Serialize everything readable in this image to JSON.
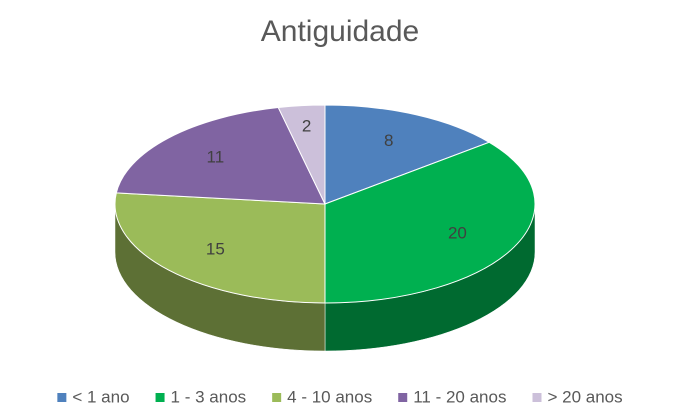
{
  "chart_data": {
    "type": "pie3d",
    "title": "Antiguidade",
    "categories": [
      "< 1 ano",
      "1 - 3 anos",
      "4 - 10 anos",
      "11 - 20 anos",
      "> 20 anos"
    ],
    "values": [
      8,
      20,
      15,
      11,
      2
    ],
    "colors": [
      "#4f81bd",
      "#00b050",
      "#9bbb59",
      "#8064a2",
      "#ccc0da"
    ],
    "legend": "bottom"
  }
}
